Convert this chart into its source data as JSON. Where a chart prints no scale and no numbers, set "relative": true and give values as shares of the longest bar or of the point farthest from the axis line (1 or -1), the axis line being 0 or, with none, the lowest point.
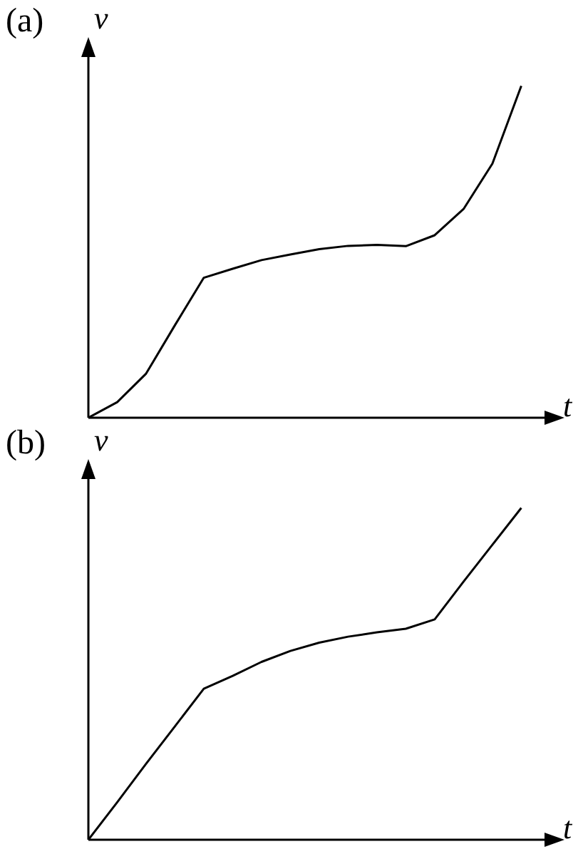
{
  "chart_data": [
    {
      "type": "line",
      "title": "(a)",
      "xlabel": "t",
      "ylabel": "v",
      "relative": true,
      "grid": false,
      "legend": false,
      "marker": "none",
      "line_style": "solid",
      "categories": [
        null,
        null,
        null,
        null,
        null,
        null,
        null,
        null,
        null,
        null,
        null,
        null,
        null,
        null,
        null,
        null
      ],
      "series": [
        {
          "color": "#000000",
          "values": [
            0,
            0.047,
            0.133,
            0.279,
            0.422,
            0.449,
            0.475,
            0.492,
            0.508,
            0.518,
            0.521,
            0.517,
            0.55,
            0.629,
            0.766,
            1
          ]
        }
      ]
    },
    {
      "type": "line",
      "title": "(b)",
      "xlabel": "t",
      "ylabel": "v",
      "relative": true,
      "grid": false,
      "legend": false,
      "marker": "none",
      "line_style": "solid",
      "categories": [
        null,
        null,
        null,
        null,
        null,
        null,
        null,
        null,
        null,
        null,
        null,
        null,
        null,
        null,
        null,
        null
      ],
      "series": [
        {
          "color": "#000000",
          "values": [
            0,
            0.113,
            0.229,
            0.342,
            0.455,
            0.494,
            0.536,
            0.569,
            0.594,
            0.612,
            0.625,
            0.636,
            0.664,
            0.778,
            0.889,
            1
          ]
        }
      ]
    }
  ]
}
